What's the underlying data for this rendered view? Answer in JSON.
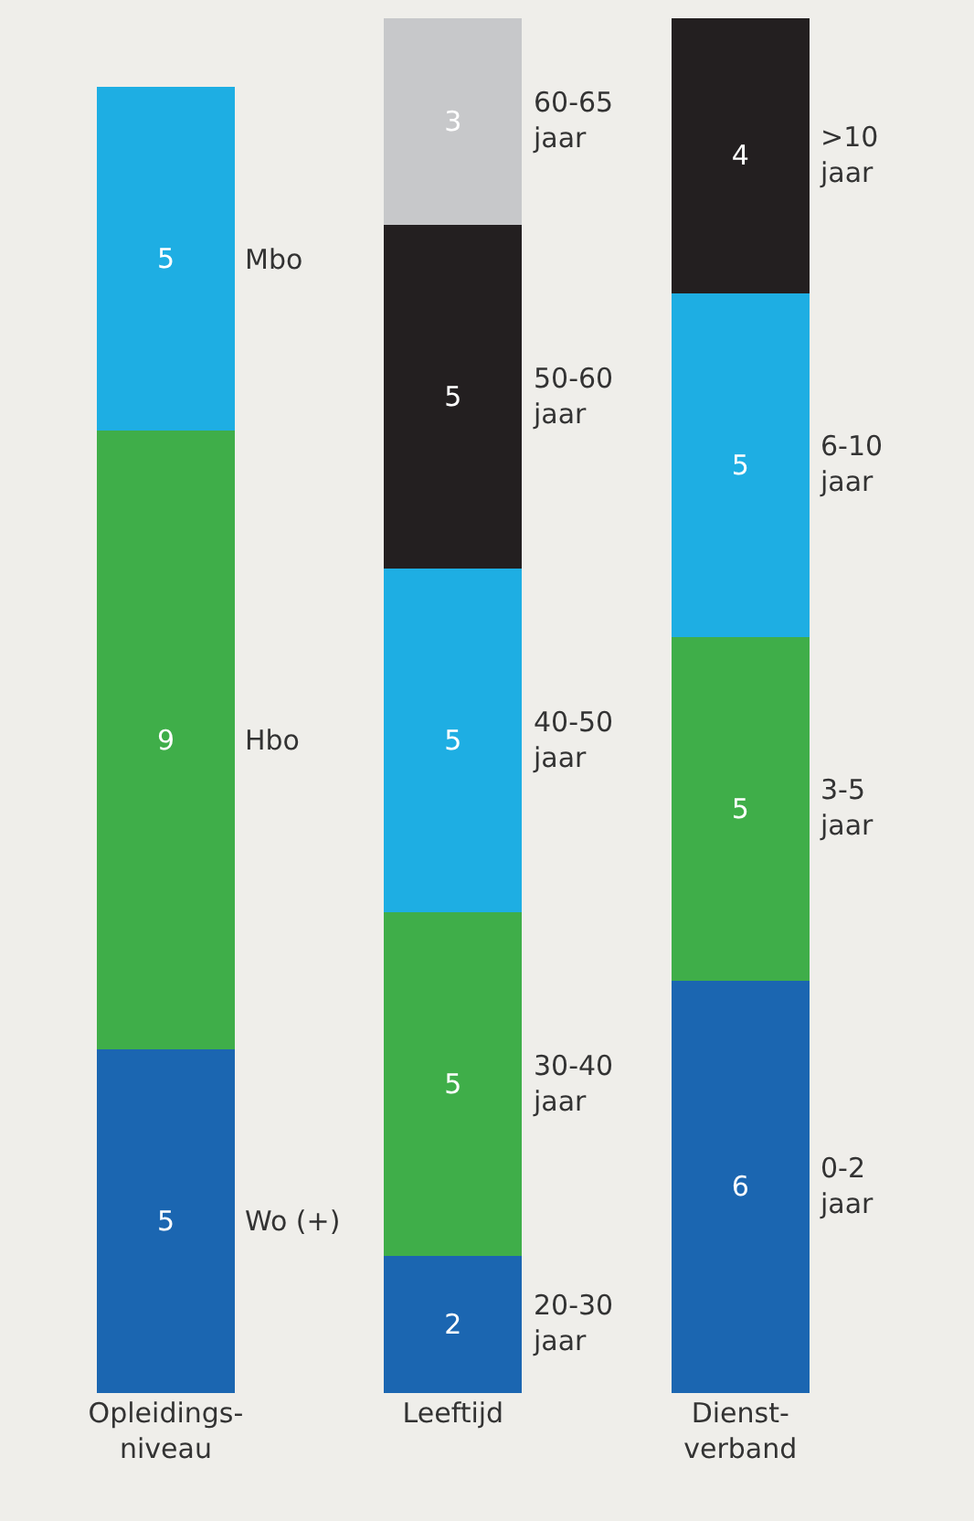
{
  "chart_data": {
    "type": "bar",
    "stacked": true,
    "categories": [
      "Opleidings-\nniveau",
      "Leeftijd",
      "Dienst-\nverband"
    ],
    "series": [
      {
        "name": "Wo (+)",
        "color": "#1b66b1",
        "values": [
          5,
          null,
          null
        ]
      },
      {
        "name": "Hbo",
        "color": "#3fae49",
        "values": [
          9,
          null,
          null
        ]
      },
      {
        "name": "Mbo",
        "color": "#1eaee3",
        "values": [
          5,
          null,
          null
        ]
      },
      {
        "name": "20-30\njaar",
        "color": "#1b66b1",
        "values": [
          null,
          2,
          null
        ]
      },
      {
        "name": "30-40\njaar",
        "color": "#3fae49",
        "values": [
          null,
          5,
          null
        ]
      },
      {
        "name": "40-50\njaar",
        "color": "#1eaee3",
        "values": [
          null,
          5,
          null
        ]
      },
      {
        "name": "50-60\njaar",
        "color": "#231f20",
        "values": [
          null,
          5,
          null
        ]
      },
      {
        "name": "60-65\njaar",
        "color": "#c7c8ca",
        "values": [
          null,
          3,
          null
        ]
      },
      {
        "name": "0-2\njaar",
        "color": "#1b66b1",
        "values": [
          null,
          null,
          6
        ]
      },
      {
        "name": "3-5\njaar",
        "color": "#3fae49",
        "values": [
          null,
          null,
          5
        ]
      },
      {
        "name": "6-10\njaar",
        "color": "#1eaee3",
        "values": [
          null,
          null,
          5
        ]
      },
      {
        "name": ">10\njaar",
        "color": "#231f20",
        "values": [
          null,
          null,
          4
        ]
      }
    ],
    "data_labels": true,
    "grid": false,
    "tick_labels": "x"
  }
}
